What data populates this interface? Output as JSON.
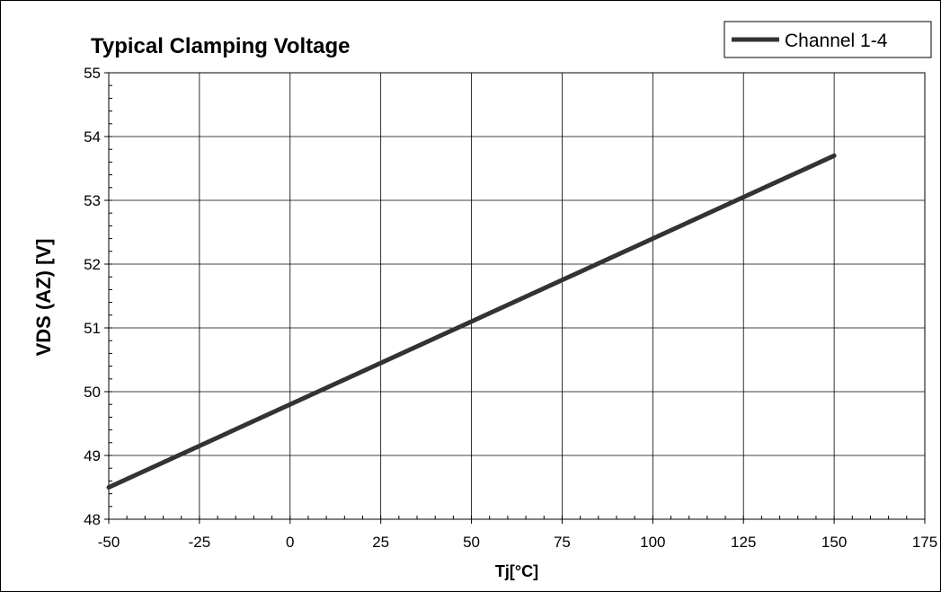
{
  "chart_data": {
    "type": "line",
    "title": "Typical Clamping Voltage",
    "xlabel": "Tj[°C]",
    "ylabel": "VDS (AZ) [V]",
    "xlim": [
      -50,
      175
    ],
    "ylim": [
      48,
      55
    ],
    "xticks": [
      -50,
      -25,
      0,
      25,
      50,
      75,
      100,
      125,
      150,
      175
    ],
    "yticks": [
      48,
      49,
      50,
      51,
      52,
      53,
      54,
      55
    ],
    "grid": true,
    "legend_position": "top-right",
    "series": [
      {
        "name": "Channel 1-4",
        "color": "#333333",
        "x": [
          -50,
          150
        ],
        "y": [
          48.5,
          53.7
        ]
      }
    ]
  }
}
